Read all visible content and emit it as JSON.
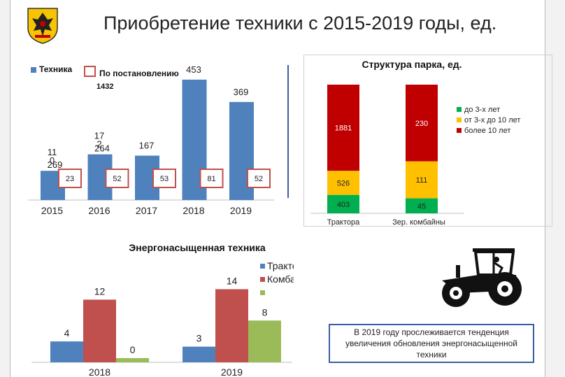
{
  "header": {
    "title": "Приобретение техники с 2015-2019 годы, ед."
  },
  "colors": {
    "blue": "#4f81bd",
    "red": "#c0504d",
    "green_light": "#9bbb59",
    "green_dark": "#00b050",
    "yellow": "#ffc000",
    "dark_red": "#c00000",
    "divider": "#3a5fa0"
  },
  "chart_data": [
    {
      "type": "bar",
      "title": "",
      "categories": [
        "2015",
        "2016",
        "2017",
        "2018",
        "2019"
      ],
      "series": [
        {
          "name": "Техника",
          "values": [
            110,
            172,
            167,
            453,
            369
          ]
        },
        {
          "name": "По постановлению",
          "values": [
            23,
            52,
            53,
            81,
            52
          ]
        }
      ],
      "value_labels": [
        "11\n0",
        "17\n2",
        "167",
        "453",
        "369"
      ],
      "overlay_labels": [
        "269",
        "264",
        "",
        "",
        ""
      ],
      "legend_note": "1432",
      "legend": "top-left",
      "ylim": [
        0,
        500
      ],
      "xlabel": "",
      "ylabel": ""
    },
    {
      "type": "bar",
      "stacked": true,
      "title": "Структура парка, ед.",
      "categories": [
        "Трактора",
        "Зер. комбайны"
      ],
      "series": [
        {
          "name": "до 3-х лет",
          "values": [
            403,
            45
          ]
        },
        {
          "name": "от 3-х до 10 лет",
          "values": [
            526,
            111
          ]
        },
        {
          "name": "более 10 лет",
          "values": [
            1881,
            230
          ]
        }
      ],
      "legend": "right",
      "xlabel": "",
      "ylabel": ""
    },
    {
      "type": "bar",
      "title": "Энергонасыщенная техника",
      "categories": [
        "2018",
        "2019"
      ],
      "series": [
        {
          "name": "Трактора",
          "values": [
            4,
            3
          ]
        },
        {
          "name": "Комбайны",
          "values": [
            12,
            14
          ]
        },
        {
          "name": "",
          "values": [
            0,
            8
          ]
        }
      ],
      "legend": "top-right",
      "ylim": [
        0,
        15
      ],
      "xlabel": "",
      "ylabel": ""
    }
  ],
  "caption": {
    "text": "В 2019 году прослеживается тенденция увеличения обновления энергонасыщенной техники"
  },
  "icons": {
    "logo": "coat-of-arms-icon",
    "tractor": "tractor-icon"
  }
}
